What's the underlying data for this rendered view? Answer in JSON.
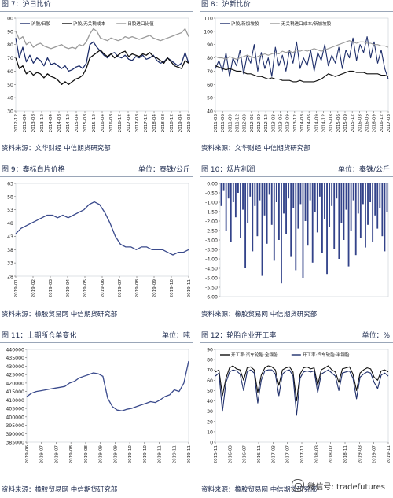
{
  "panels": [
    {
      "title": "图 7：沪日比价",
      "unit": "",
      "source": "资料来源：文华财经  中信期货研究部",
      "chart": {
        "type": "line",
        "ylim": [
          30,
          100
        ],
        "yticks": [
          30,
          40,
          50,
          60,
          70,
          80,
          90,
          100
        ],
        "ytick_decimals": 0,
        "legend": [
          "沪胶/日胶",
          "沪胶/无关税成本",
          "日胶进口比值"
        ],
        "xticks": [
          "2012-12",
          "2013-04",
          "2013-08",
          "2013-12",
          "2014-04",
          "2014-08",
          "2014-12",
          "2015-04",
          "2015-08",
          "2015-12",
          "2016-04",
          "2016-08",
          "2016-12",
          "2017-04",
          "2017-08",
          "2017-12",
          "2018-04",
          "2018-08",
          "2018-12",
          "2019-04",
          "2019-08"
        ],
        "series": [
          {
            "color": "#1f2f6b",
            "width": 1.3,
            "values": [
              85,
              70,
              78,
              67,
              72,
              66,
              70,
              68,
              64,
              70,
              65,
              66,
              64,
              62,
              64,
              60,
              61,
              63,
              64,
              62,
              66,
              80,
              82,
              78,
              75,
              72,
              70,
              73,
              74,
              71,
              70,
              72,
              69,
              68,
              71,
              70,
              72,
              69,
              70,
              72,
              68,
              66,
              67,
              70,
              68,
              66,
              64,
              66,
              74,
              66
            ]
          },
          {
            "color": "#101010",
            "width": 1.3,
            "values": [
              70,
              62,
              64,
              58,
              60,
              57,
              59,
              58,
              55,
              58,
              56,
              55,
              53,
              50,
              52,
              50,
              52,
              54,
              55,
              57,
              62,
              70,
              72,
              74,
              76,
              73,
              71,
              73,
              70,
              72,
              74,
              75,
              71,
              73,
              72,
              71,
              73,
              72,
              74,
              71,
              70,
              68,
              66,
              70,
              67,
              64,
              63,
              62,
              68,
              66
            ]
          },
          {
            "color": "#9a9a9a",
            "width": 1.3,
            "values": [
              90,
              84,
              86,
              80,
              82,
              78,
              80,
              81,
              79,
              78,
              77,
              78,
              79,
              80,
              78,
              77,
              78,
              77,
              80,
              79,
              82,
              88,
              92,
              90,
              85,
              84,
              83,
              85,
              84,
              83,
              84,
              86,
              85,
              86,
              85,
              84,
              85,
              86,
              87,
              85,
              84,
              83,
              84,
              85,
              86,
              87,
              88,
              89,
              92,
              86
            ]
          }
        ]
      }
    },
    {
      "title": "图 8：沪新比价",
      "unit": "",
      "source": "资料来源：文华财经  中信期货研究部",
      "chart": {
        "type": "line",
        "ylim": [
          40,
          110
        ],
        "yticks": [
          40,
          50,
          60,
          70,
          80,
          90,
          100,
          110
        ],
        "ytick_decimals": 0,
        "legend": [
          "沪胶/新加坡胶",
          "无关税进口成本/新加坡胶"
        ],
        "xticks": [
          "2011-03",
          "2011-06",
          "2011-09",
          "2011-12",
          "2012-03",
          "2012-06",
          "2012-09",
          "2012-12",
          "2013-03",
          "2013-06",
          "2013-09",
          "2013-12",
          "2014-03",
          "2014-06",
          "2014-09",
          "2014-12",
          "2015-03",
          "2015-06",
          "2015-09",
          "2015-12",
          "2016-03",
          "2016-06",
          "2016-09",
          "2016-12",
          "2017-03"
        ],
        "series": [
          {
            "color": "#1f2f6b",
            "width": 1.1,
            "values": [
              72,
              78,
              70,
              84,
              66,
              80,
              74,
              86,
              68,
              82,
              76,
              90,
              70,
              84,
              72,
              80,
              66,
              88,
              74,
              82,
              70,
              86,
              76,
              92,
              72,
              80,
              74,
              86,
              70,
              84,
              78,
              90,
              74,
              82,
              76,
              88,
              72,
              86,
              80,
              95,
              78,
              90,
              84,
              96,
              80,
              92,
              76,
              86,
              72,
              64
            ]
          },
          {
            "color": "#9a9a9a",
            "width": 1.1,
            "values": [
              81,
              80,
              80,
              79,
              81,
              80,
              79,
              80,
              81,
              82,
              81,
              80,
              81,
              82,
              83,
              82,
              83,
              84,
              83,
              85,
              84,
              85,
              84,
              86,
              85,
              86,
              85,
              86,
              87,
              86,
              85,
              86,
              87,
              88,
              89,
              90,
              91,
              92,
              93,
              92,
              91,
              92,
              92,
              91,
              91,
              90,
              90,
              89,
              89,
              88
            ]
          },
          {
            "color": "#101010",
            "width": 1.1,
            "values": [
              74,
              73,
              72,
              71,
              72,
              71,
              70,
              70,
              69,
              68,
              68,
              67,
              66,
              66,
              65,
              64,
              65,
              64,
              64,
              63,
              63,
              63,
              62,
              62,
              63,
              62,
              62,
              62,
              62,
              63,
              64,
              66,
              68,
              67,
              66,
              67,
              68,
              69,
              70,
              70,
              69,
              69,
              69,
              68,
              68,
              68,
              68,
              67,
              67,
              66
            ]
          }
        ]
      }
    },
    {
      "title": "图 9：泰标白片价格",
      "unit": "单位：泰铢/公斤",
      "source": "资料来源：橡胶贸易网  中信期货研究部",
      "chart": {
        "type": "line",
        "ylim": [
          28,
          63
        ],
        "yticks": [
          28,
          33,
          38,
          43,
          48,
          53,
          58,
          63
        ],
        "ytick_decimals": 0,
        "legend": [],
        "xticks": [
          "2019-01",
          "2019-02",
          "2019-03",
          "2019-04",
          "2019-05",
          "2019-06",
          "2019-07",
          "2019-08",
          "2019-09",
          "2019-10",
          "2019-11"
        ],
        "series": [
          {
            "color": "#3a4a8c",
            "width": 1.3,
            "values": [
              44,
              46,
              47,
              48,
              49,
              50,
              51,
              51,
              50,
              51,
              50,
              51,
              52,
              53,
              55,
              56,
              55,
              52,
              48,
              43,
              40,
              39,
              39,
              38,
              39,
              39,
              38,
              38,
              38,
              37,
              36,
              37,
              37,
              38
            ]
          }
        ]
      }
    },
    {
      "title": "图 10：烟片利润",
      "unit": "单位：泰铢/公斤",
      "source": "资料来源：橡胶贸易网  中信期货研究部",
      "chart": {
        "type": "bar",
        "ylim": [
          -6.0,
          0.0
        ],
        "yticks": [
          0.0,
          -0.5,
          -1.0,
          -1.5,
          -2.0,
          -2.5,
          -3.0,
          -3.5,
          -4.0,
          -4.5,
          -5.0,
          -5.5,
          -6.0
        ],
        "ytick_decimals": 2,
        "legend": [],
        "xticks": [],
        "series": [
          {
            "color": "#33438a",
            "values": [
              -1.2,
              -0.4,
              -2.5,
              -0.8,
              -3.1,
              -1.0,
              -1.8,
              -0.5,
              -2.9,
              -1.4,
              -4.5,
              -2.1,
              -0.7,
              -3.6,
              -1.2,
              -2.8,
              -0.9,
              -4.9,
              -1.7,
              -3.2,
              -0.6,
              -2.2,
              -4.1,
              -1.0,
              -3.0,
              -5.3,
              -1.6,
              -2.7,
              -0.8,
              -3.9,
              -1.3,
              -4.6,
              -2.4,
              -1.1,
              -5.0,
              -2.0,
              -3.3,
              -0.9,
              -4.2,
              -1.5,
              -2.6,
              -0.7,
              -3.7,
              -1.9,
              -4.8,
              -2.3,
              -1.2,
              -3.5,
              -0.8,
              -4.0,
              -2.1,
              -3.0,
              -1.4,
              -4.4,
              -2.5,
              -0.9,
              -3.8,
              -1.6,
              -2.9,
              -1.1,
              -3.4,
              -2.2,
              -1.0,
              -3.1,
              -1.7,
              -2.4,
              -1.3,
              -2.8,
              -3.6,
              -1.5
            ]
          }
        ]
      }
    },
    {
      "title": "图 11：上期所仓单变化",
      "unit": "单位：吨",
      "source": "资料来源：橡胶贸易网  中信期货研究部",
      "chart": {
        "type": "line",
        "ylim": [
          385000,
          440000
        ],
        "yticks": [
          385000,
          390000,
          395000,
          400000,
          405000,
          410000,
          415000,
          420000,
          425000,
          430000,
          435000,
          440000
        ],
        "ytick_decimals": 0,
        "legend": [],
        "xticks": [
          "2019-06",
          "2019-07",
          "2019-07",
          "2019-08",
          "2019-08",
          "2019-09",
          "2019-09",
          "2019-10",
          "2019-10",
          "2019-11",
          "2019-11",
          "2019-11"
        ],
        "series": [
          {
            "color": "#3a4a8c",
            "width": 1.3,
            "values": [
              412000,
              414000,
              415000,
              415500,
              416000,
              416500,
              417000,
              417500,
              418000,
              420000,
              421000,
              423000,
              424000,
              425000,
              426000,
              425500,
              424000,
              411000,
              406000,
              404000,
              403500,
              404500,
              405000,
              406000,
              407000,
              408000,
              409000,
              408500,
              410000,
              412000,
              413000,
              416000,
              415000,
              420000,
              433000
            ]
          }
        ]
      }
    },
    {
      "title": "图 12：轮胎企业开工率",
      "unit": "单位：%",
      "source": "资料来源：橡胶贸易网  中信期货研究部",
      "chart": {
        "type": "line",
        "ylim": [
          0,
          90
        ],
        "yticks": [
          0,
          10,
          20,
          30,
          40,
          50,
          60,
          70,
          80,
          90
        ],
        "ytick_decimals": 0,
        "legend": [
          "开工率:汽车轮胎:全钢胎",
          "开工率:汽车轮胎:半钢胎"
        ],
        "xticks": [
          "2015-11",
          "2016-03",
          "2016-07",
          "2016-11",
          "2017-03",
          "2017-07",
          "2017-11",
          "2018-03",
          "2018-07",
          "2018-11",
          "2019-03",
          "2019-07",
          "2019-11"
        ],
        "series": [
          {
            "color": "#101010",
            "width": 1.1,
            "values": [
              68,
              70,
              45,
              62,
              72,
              74,
              71,
              70,
              60,
              72,
              73,
              70,
              48,
              65,
              72,
              74,
              73,
              70,
              55,
              70,
              72,
              73,
              68,
              40,
              66,
              72,
              73,
              71,
              72,
              55,
              70,
              72,
              74,
              70,
              68,
              58,
              71,
              72,
              73,
              66,
              50,
              67,
              70,
              72,
              71,
              63,
              60,
              69,
              70,
              68
            ]
          },
          {
            "color": "#1f2f6b",
            "width": 1.1,
            "values": [
              64,
              67,
              30,
              58,
              68,
              70,
              69,
              66,
              50,
              68,
              70,
              67,
              38,
              60,
              69,
              70,
              70,
              66,
              45,
              66,
              69,
              70,
              64,
              26,
              62,
              68,
              69,
              68,
              69,
              48,
              66,
              68,
              70,
              67,
              64,
              50,
              67,
              68,
              69,
              62,
              42,
              63,
              66,
              68,
              67,
              58,
              52,
              65,
              67,
              64
            ]
          }
        ]
      }
    }
  ],
  "watermark": "微信号: tradefutures"
}
